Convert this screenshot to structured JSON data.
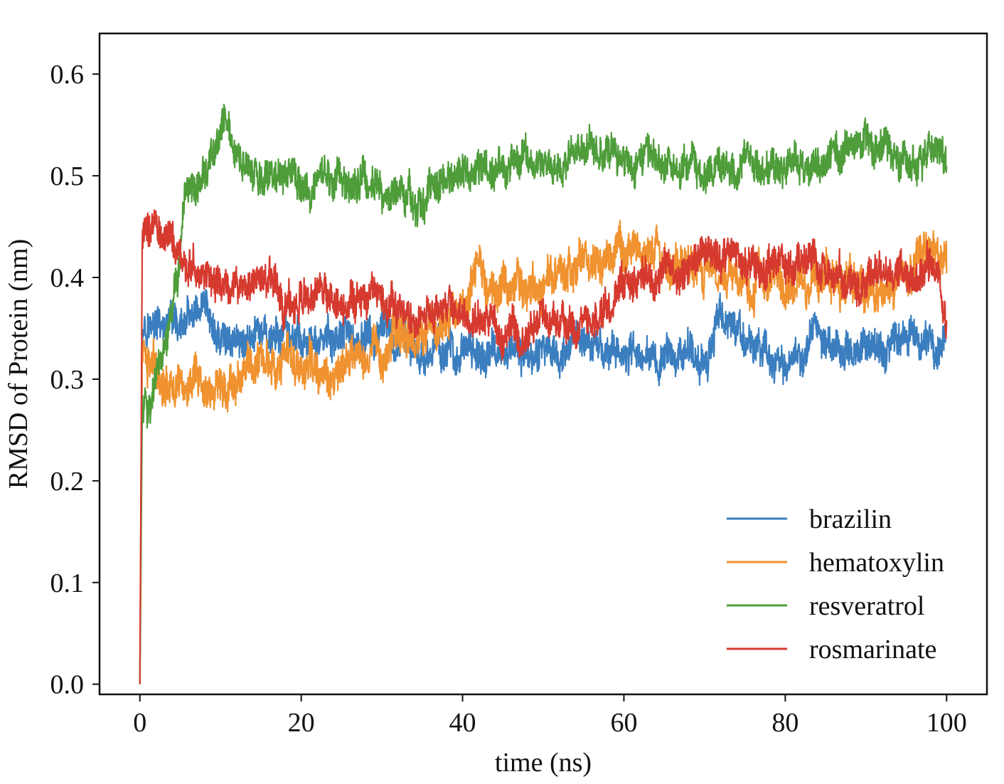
{
  "chart_data": {
    "type": "line",
    "title": "",
    "xlabel": "time (ns)",
    "ylabel": "RMSD of Protein (nm)",
    "xlim": [
      -5,
      105
    ],
    "ylim": [
      -0.01,
      0.64
    ],
    "xticks": [
      0,
      20,
      40,
      60,
      80,
      100
    ],
    "xtick_labels": [
      "0",
      "20",
      "40",
      "60",
      "80",
      "100"
    ],
    "yticks": [
      0.0,
      0.1,
      0.2,
      0.3,
      0.4,
      0.5,
      0.6
    ],
    "ytick_labels": [
      "0.0",
      "0.1",
      "0.2",
      "0.3",
      "0.4",
      "0.5",
      "0.6"
    ],
    "grid": false,
    "legend_position": "lower-right",
    "series": [
      {
        "name": "brazilin",
        "color": "#3a7ebf",
        "x": [
          0,
          0.3,
          1,
          2,
          4,
          6,
          8,
          10,
          12,
          15,
          18,
          20,
          22,
          25,
          28,
          30,
          32,
          35,
          38,
          40,
          45,
          50,
          55,
          60,
          65,
          70,
          72,
          75,
          80,
          85,
          90,
          95,
          100
        ],
        "y": [
          0.0,
          0.36,
          0.36,
          0.35,
          0.345,
          0.355,
          0.35,
          0.335,
          0.34,
          0.34,
          0.34,
          0.34,
          0.335,
          0.335,
          0.34,
          0.335,
          0.33,
          0.33,
          0.33,
          0.325,
          0.325,
          0.33,
          0.33,
          0.325,
          0.325,
          0.325,
          0.36,
          0.335,
          0.32,
          0.335,
          0.33,
          0.335,
          0.335
        ],
        "noise": 0.018
      },
      {
        "name": "hematoxylin",
        "color": "#f0922f",
        "x": [
          0,
          0.3,
          1,
          2,
          4,
          6,
          8,
          10,
          12,
          15,
          18,
          20,
          22,
          25,
          28,
          30,
          32,
          35,
          38,
          40,
          42,
          45,
          50,
          55,
          58,
          60,
          63,
          65,
          70,
          72,
          75,
          80,
          85,
          90,
          93,
          95,
          100
        ],
        "y": [
          0.0,
          0.33,
          0.32,
          0.31,
          0.3,
          0.295,
          0.28,
          0.29,
          0.305,
          0.32,
          0.315,
          0.32,
          0.3,
          0.31,
          0.33,
          0.335,
          0.345,
          0.345,
          0.36,
          0.37,
          0.4,
          0.395,
          0.4,
          0.41,
          0.43,
          0.415,
          0.42,
          0.405,
          0.405,
          0.42,
          0.4,
          0.395,
          0.4,
          0.395,
          0.38,
          0.415,
          0.42
        ],
        "noise": 0.02
      },
      {
        "name": "resveratrol",
        "color": "#4e9d3a",
        "x": [
          0,
          0.3,
          1,
          2,
          3,
          4,
          5,
          6,
          7,
          9,
          10.5,
          12,
          15,
          18,
          20,
          25,
          28,
          30,
          33,
          35,
          37,
          40,
          45,
          48,
          50,
          55,
          58,
          60,
          65,
          70,
          75,
          80,
          85,
          90,
          95,
          100
        ],
        "y": [
          0.0,
          0.27,
          0.28,
          0.3,
          0.32,
          0.36,
          0.42,
          0.47,
          0.5,
          0.51,
          0.55,
          0.51,
          0.49,
          0.5,
          0.49,
          0.5,
          0.5,
          0.49,
          0.48,
          0.47,
          0.5,
          0.5,
          0.51,
          0.53,
          0.51,
          0.52,
          0.52,
          0.52,
          0.515,
          0.5,
          0.51,
          0.515,
          0.52,
          0.53,
          0.515,
          0.52
        ],
        "noise": 0.018
      },
      {
        "name": "rosmarinate",
        "color": "#d63a2f",
        "x": [
          0,
          0.3,
          1,
          2,
          3,
          4,
          6,
          8,
          10,
          12,
          15,
          18,
          20,
          25,
          28,
          30,
          33,
          35,
          38,
          40,
          43,
          45,
          48,
          50,
          55,
          58,
          60,
          63,
          65,
          70,
          75,
          80,
          85,
          90,
          95,
          99,
          100
        ],
        "y": [
          0.0,
          0.44,
          0.45,
          0.46,
          0.45,
          0.43,
          0.41,
          0.4,
          0.39,
          0.39,
          0.4,
          0.38,
          0.37,
          0.38,
          0.37,
          0.37,
          0.36,
          0.36,
          0.37,
          0.36,
          0.35,
          0.345,
          0.345,
          0.355,
          0.355,
          0.37,
          0.38,
          0.4,
          0.41,
          0.42,
          0.415,
          0.41,
          0.41,
          0.405,
          0.405,
          0.4,
          0.35
        ],
        "noise": 0.018
      }
    ]
  }
}
